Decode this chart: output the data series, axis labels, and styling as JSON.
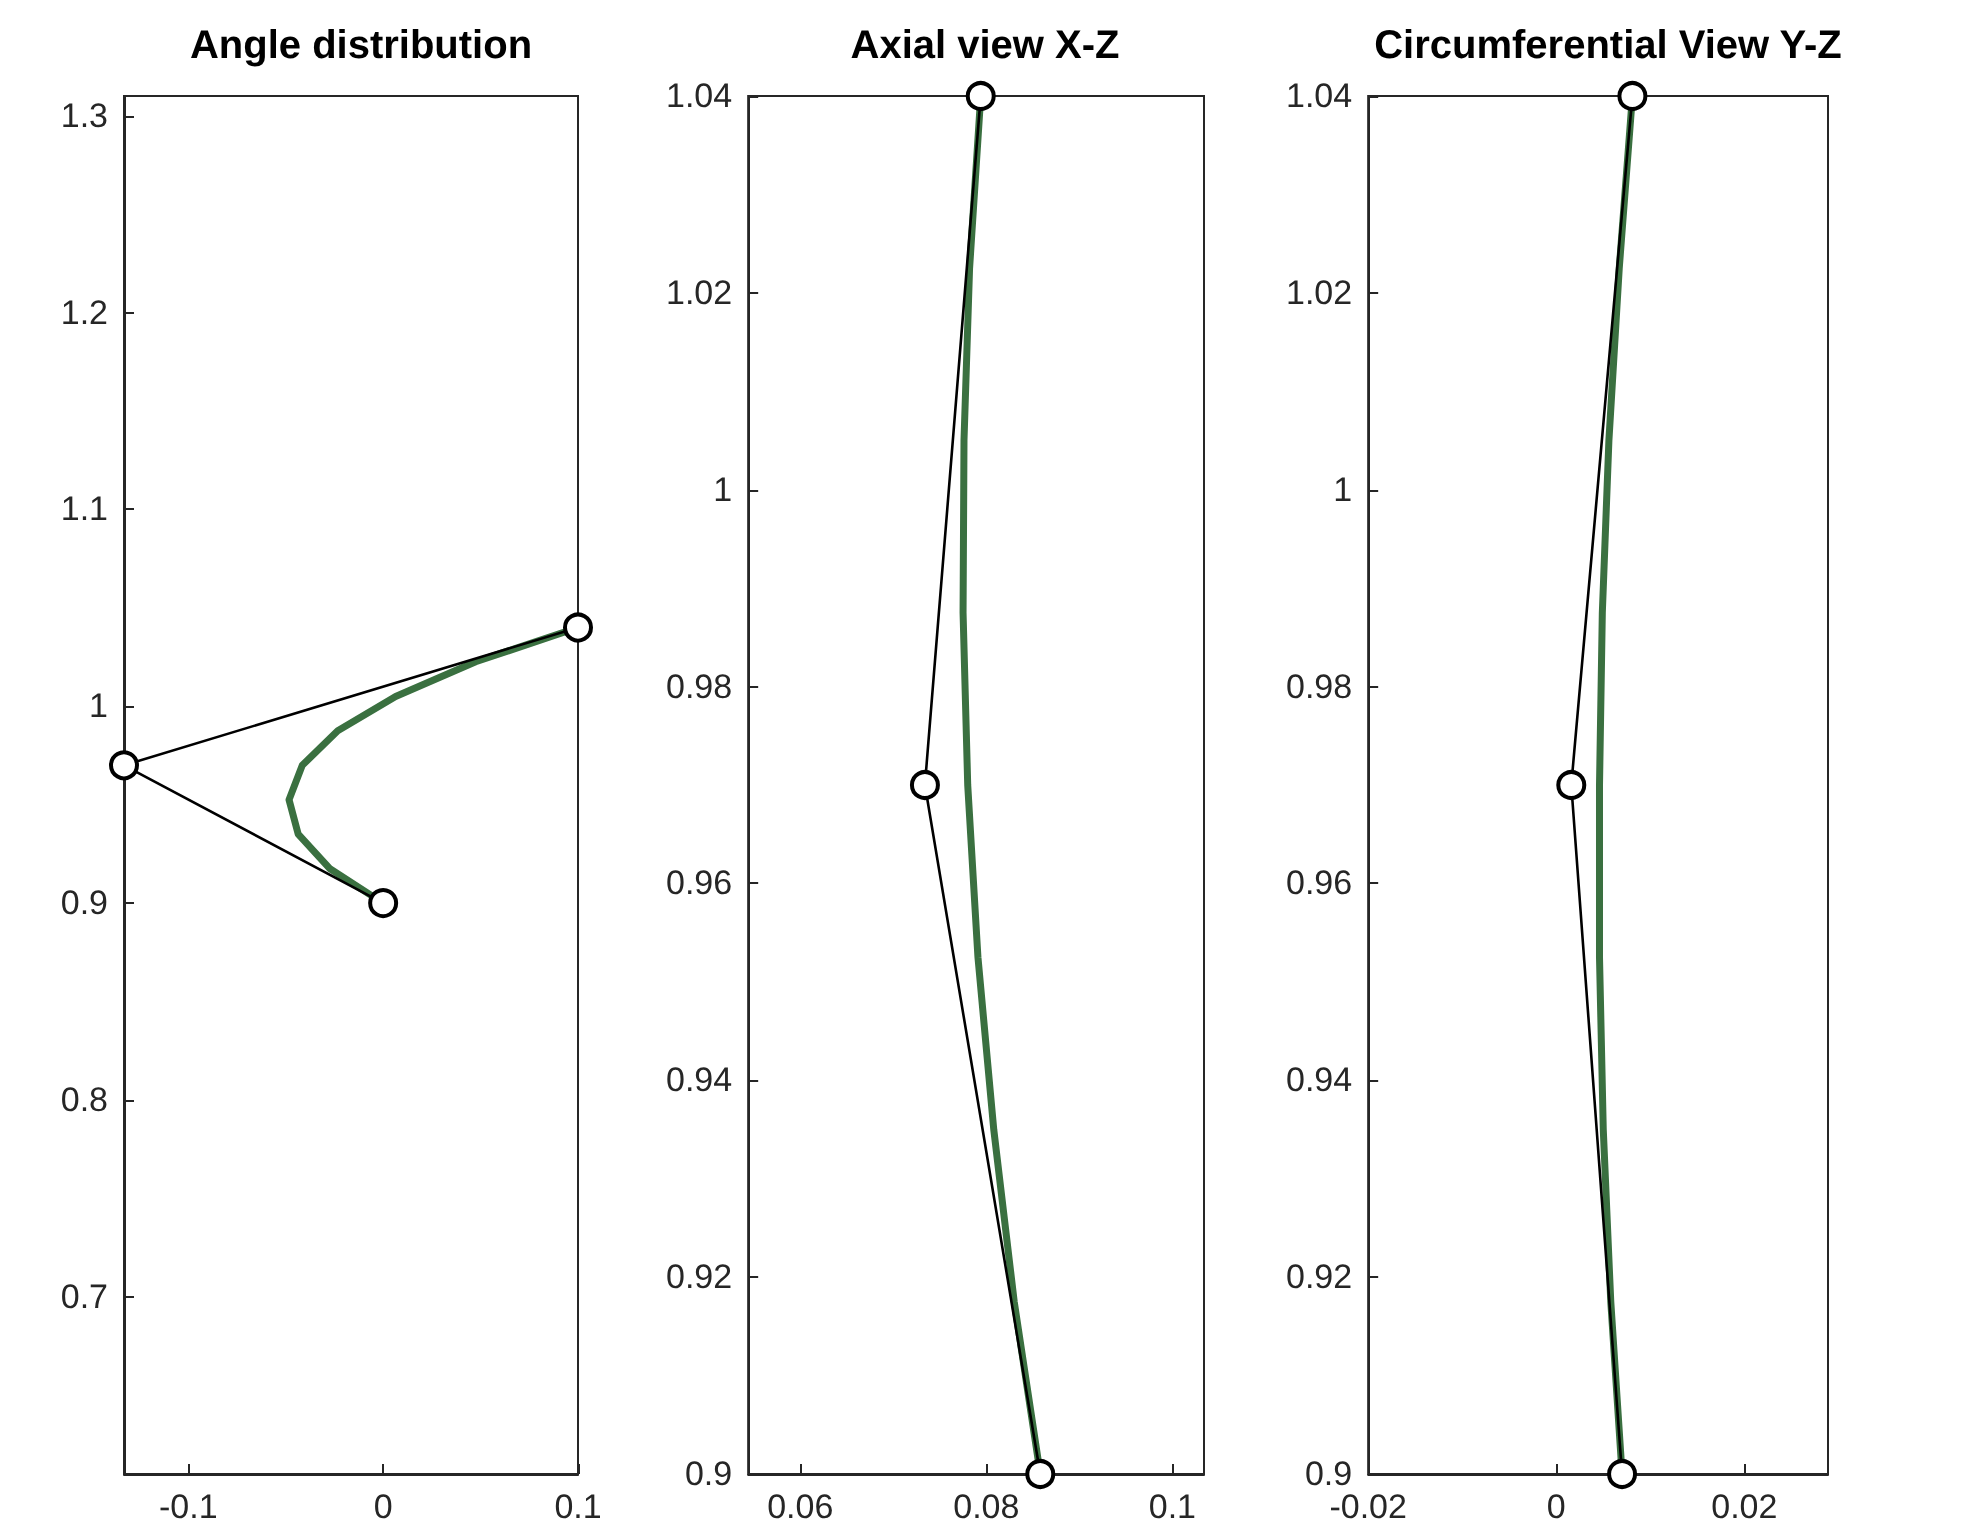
{
  "chart_data": [
    {
      "type": "line",
      "title": "Angle distribution",
      "xlim": [
        -0.133,
        0.1
      ],
      "xticks": [
        -0.1,
        0,
        0.1
      ],
      "ylim": [
        0.61,
        1.31
      ],
      "yticks": [
        0.7,
        0.8,
        0.9,
        1,
        1.1,
        1.2,
        1.3
      ],
      "grid": false,
      "series": [
        {
          "color": "#000000",
          "marker": "circle",
          "x": [
            0,
            -0.133,
            0.1
          ],
          "values": [
            0.9,
            0.97,
            1.04
          ]
        },
        {
          "color": "#3a7040",
          "marker": "none",
          "x": [
            0,
            -0.0275,
            -0.0436,
            -0.0483,
            -0.0415,
            -0.0233,
            0.0064,
            0.0475,
            0.1
          ],
          "values": [
            0.9,
            0.9176,
            0.935,
            0.9525,
            0.97,
            0.9875,
            1.005,
            1.0226,
            1.04
          ]
        }
      ]
    },
    {
      "type": "line",
      "title": "Axial view X-Z",
      "xlim": [
        0.0544,
        0.1034
      ],
      "xticks": [
        0.06,
        0.08,
        0.1
      ],
      "ylim": [
        0.9,
        1.04
      ],
      "yticks": [
        0.9,
        0.92,
        0.94,
        0.96,
        0.98,
        1,
        1.02,
        1.04
      ],
      "grid": false,
      "series": [
        {
          "color": "#000000",
          "marker": "circle",
          "x": [
            0.0858,
            0.0734,
            0.0794
          ],
          "values": [
            0.9,
            0.97,
            1.04
          ]
        },
        {
          "color": "#3a7040",
          "marker": "none",
          "x": [
            0.0858,
            0.083,
            0.0808,
            0.0791,
            0.078,
            0.0775,
            0.0776,
            0.0782,
            0.0794
          ],
          "values": [
            0.9,
            0.9175,
            0.935,
            0.9525,
            0.97,
            0.9875,
            1.005,
            1.0225,
            1.04
          ]
        }
      ]
    },
    {
      "type": "line",
      "title": "Circumferential View Y-Z",
      "xlim": [
        -0.02,
        0.0289
      ],
      "xticks": [
        -0.02,
        0,
        0.02
      ],
      "ylim": [
        0.9,
        1.04
      ],
      "yticks": [
        0.9,
        0.92,
        0.94,
        0.96,
        0.98,
        1,
        1.02,
        1.04
      ],
      "grid": false,
      "series": [
        {
          "color": "#000000",
          "marker": "circle",
          "x": [
            0.007,
            0.0016,
            0.0081
          ],
          "values": [
            0.9,
            0.97,
            1.04
          ]
        },
        {
          "color": "#3a7040",
          "marker": "none",
          "x": [
            0.007,
            0.0058,
            0.005,
            0.0046,
            0.0046,
            0.0049,
            0.0056,
            0.0067,
            0.0081
          ],
          "values": [
            0.9,
            0.9175,
            0.935,
            0.9525,
            0.97,
            0.9875,
            1.005,
            1.0225,
            1.04
          ]
        }
      ]
    }
  ]
}
